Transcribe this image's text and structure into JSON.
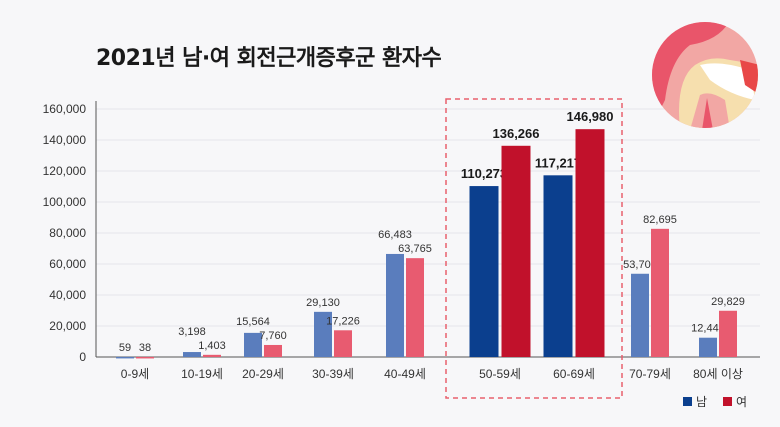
{
  "chart_data": {
    "type": "bar",
    "title": "2021년 남·여 회전근개증후군 환자수",
    "categories": [
      "0-9세",
      "10-19세",
      "20-29세",
      "30-39세",
      "40-49세",
      "50-59세",
      "60-69세",
      "70-79세",
      "80세 이상"
    ],
    "series": [
      {
        "name": "남",
        "values": [
          59,
          3198,
          15564,
          29130,
          66483,
          110273,
          117217,
          53704,
          12448
        ]
      },
      {
        "name": "여",
        "values": [
          38,
          1403,
          7760,
          17226,
          63765,
          136266,
          146980,
          82695,
          29829
        ]
      }
    ],
    "value_labels": [
      [
        "59",
        "3,198",
        "15,564",
        "29,130",
        "66,483",
        "110,273",
        "117,217",
        "53,704",
        "12,448"
      ],
      [
        "38",
        "1,403",
        "7,760",
        "17,226",
        "63,765",
        "136,266",
        "146,980",
        "82,695",
        "29,829"
      ]
    ],
    "highlighted_categories": [
      "50-59세",
      "60-69세"
    ],
    "yticks": [
      "0",
      "20,000",
      "40,000",
      "60,000",
      "80,000",
      "100,000",
      "120,000",
      "140,000",
      "160,000"
    ],
    "ylim": [
      0,
      160000
    ],
    "xlabel": "",
    "ylabel": "",
    "legend_position": "bottom-right",
    "colors": {
      "male": "#5a7dbd",
      "female": "#e85b70",
      "male_highlight": "#0b3f8e",
      "female_highlight": "#c1112b",
      "dashed_box": "#e8606e"
    }
  }
}
